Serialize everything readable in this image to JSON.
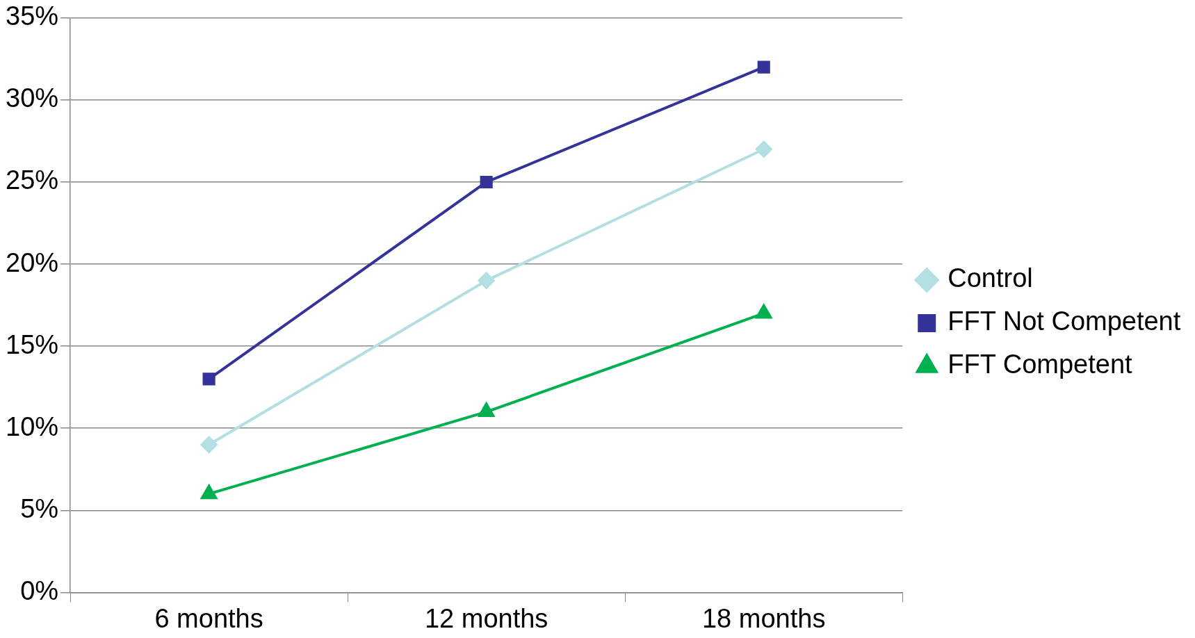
{
  "chart_data": {
    "type": "line",
    "categories": [
      "6 months",
      "12 months",
      "18 months"
    ],
    "series": [
      {
        "name": "Control",
        "color": "#b3dfe2",
        "marker": "diamond",
        "values": [
          9,
          19,
          27
        ]
      },
      {
        "name": "FFT Not Competent",
        "color": "#333399",
        "marker": "square",
        "values": [
          13,
          25,
          32
        ]
      },
      {
        "name": "FFT Competent",
        "color": "#00b050",
        "marker": "triangle",
        "values": [
          6,
          11,
          17
        ]
      }
    ],
    "ylim": [
      0,
      35
    ],
    "yticks": [
      {
        "value": 0,
        "label": "0%"
      },
      {
        "value": 5,
        "label": "5%"
      },
      {
        "value": 10,
        "label": "10%"
      },
      {
        "value": 15,
        "label": "15%"
      },
      {
        "value": 20,
        "label": "20%"
      },
      {
        "value": 25,
        "label": "25%"
      },
      {
        "value": 30,
        "label": "30%"
      },
      {
        "value": 35,
        "label": "35%"
      }
    ],
    "grid": "y",
    "legend": "right",
    "line_style": "solid"
  }
}
